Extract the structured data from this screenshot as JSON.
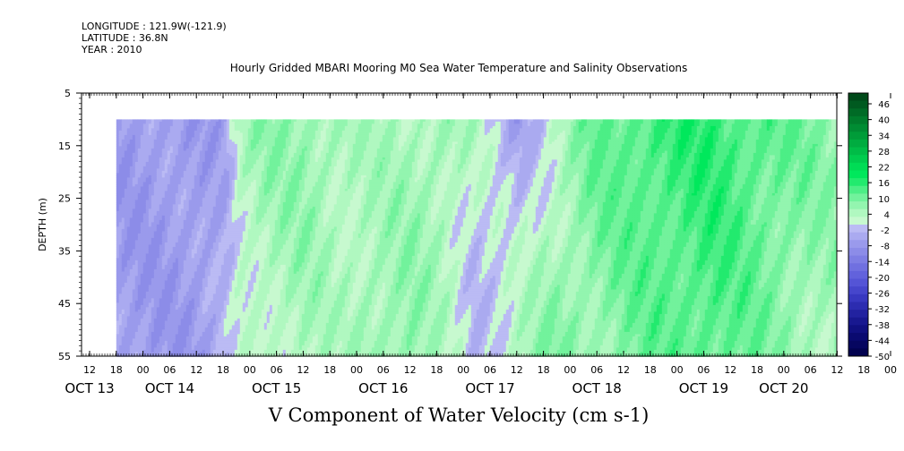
{
  "header": {
    "longitude": "LONGITUDE : 121.9W(-121.9)",
    "latitude": "LATITUDE : 36.8N",
    "year": "YEAR : 2010"
  },
  "plot_title": "Hourly Gridded MBARI Mooring M0 Sea Water Temperature and Salinity Observations",
  "main_title": "V Component of Water Velocity (cm s-1)",
  "chart_data": {
    "type": "heatmap",
    "title": "Hourly Gridded MBARI Mooring M0 Sea Water Temperature and Salinity Observations",
    "quantity": "V Component of Water Velocity (cm s-1)",
    "ylabel": "DEPTH (m)",
    "y_ticks": [
      5,
      15,
      25,
      35,
      45,
      55
    ],
    "ylim": [
      5,
      55
    ],
    "y_inverted": true,
    "x_hour_ticks": [
      "12",
      "18",
      "00",
      "06",
      "12",
      "18",
      "00",
      "06",
      "12",
      "18",
      "00",
      "06",
      "12",
      "18",
      "00",
      "06",
      "12",
      "18",
      "00",
      "06",
      "12",
      "18",
      "00",
      "06",
      "12",
      "18",
      "00",
      "06",
      "12",
      "18",
      "00",
      "06"
    ],
    "x_day_labels": [
      "OCT 13",
      "OCT 14",
      "OCT 15",
      "OCT 16",
      "OCT 17",
      "OCT 18",
      "OCT 19",
      "OCT 20"
    ],
    "x_day_label_hour_index": [
      0,
      3,
      7,
      11,
      15,
      19,
      23,
      26
    ],
    "data_depth_range": [
      10,
      55
    ],
    "data_start_hour_index": 1,
    "data_end_hour_index": 31.6,
    "colorbar": {
      "tick_labels": [
        "46",
        "40",
        "34",
        "28",
        "22",
        "16",
        "10",
        "4",
        "-2",
        "-8",
        "-14",
        "-20",
        "-26",
        "-32",
        "-38",
        "-44",
        "-50"
      ],
      "levels": [
        52,
        49,
        46,
        43,
        40,
        37,
        34,
        31,
        28,
        25,
        22,
        19,
        16,
        13,
        10,
        7,
        4,
        1,
        -2,
        -5,
        -8,
        -11,
        -14,
        -17,
        -20,
        -23,
        -26,
        -29,
        -32,
        -35,
        -38,
        -41,
        -44,
        -47,
        -50
      ],
      "colors": [
        "#004a1a",
        "#005a20",
        "#006b26",
        "#007c2c",
        "#008c33",
        "#009c39",
        "#00ac40",
        "#00bc47",
        "#00cc4e",
        "#00dc55",
        "#00e85c",
        "#22ea6e",
        "#4cee86",
        "#72f29c",
        "#93f5af",
        "#b0f8c0",
        "#c7f9cf",
        "#bbbbf4",
        "#aaaaf0",
        "#9a9aec",
        "#8c8ce8",
        "#7e7ee4",
        "#7070e0",
        "#6262dc",
        "#5454d6",
        "#4646cc",
        "#3838c0",
        "#2c2cb0",
        "#2222a0",
        "#181890",
        "#101080",
        "#0a0a70",
        "#060660",
        "#020250"
      ]
    },
    "column_profiles": [
      {
        "t": 1.0,
        "surface": -6,
        "bottom": -6
      },
      {
        "t": 1.25,
        "surface": -4,
        "bottom": -3
      },
      {
        "t": 1.4,
        "surface": 6,
        "bottom": 2
      },
      {
        "t": 1.6,
        "surface": 8,
        "bottom": 4
      },
      {
        "t": 2.0,
        "surface": 9,
        "bottom": 6
      },
      {
        "t": 2.3,
        "surface": 7,
        "bottom": 4
      },
      {
        "t": 2.6,
        "surface": 5,
        "bottom": 8
      },
      {
        "t": 3.0,
        "surface": 6,
        "bottom": 9
      },
      {
        "t": 3.3,
        "surface": 8,
        "bottom": 4
      },
      {
        "t": 3.6,
        "surface": 4,
        "bottom": -2
      },
      {
        "t": 4.0,
        "surface": -5,
        "bottom": 6
      },
      {
        "t": 4.3,
        "surface": 2,
        "bottom": 10
      },
      {
        "t": 4.7,
        "surface": 12,
        "bottom": 8
      },
      {
        "t": 5.3,
        "surface": 16,
        "bottom": 12
      },
      {
        "t": 5.8,
        "surface": 17,
        "bottom": 14
      },
      {
        "t": 6.3,
        "surface": 14,
        "bottom": 10
      },
      {
        "t": 6.8,
        "surface": 10,
        "bottom": 6
      },
      {
        "t": 7.5,
        "surface": 8,
        "bottom": 4
      },
      {
        "t": 8.0,
        "surface": 6,
        "bottom": -4
      },
      {
        "t": 8.4,
        "surface": 5,
        "bottom": -2
      },
      {
        "t": 8.8,
        "surface": 6,
        "bottom": 2
      },
      {
        "t": 9.1,
        "surface": 8,
        "bottom": -3
      },
      {
        "t": 9.5,
        "surface": 10,
        "bottom": 0
      },
      {
        "t": 10.0,
        "surface": 14,
        "bottom": 16
      },
      {
        "t": 10.5,
        "surface": 16,
        "bottom": 14
      },
      {
        "t": 11.2,
        "surface": 16,
        "bottom": 10
      },
      {
        "t": 11.8,
        "surface": 14,
        "bottom": 6
      },
      {
        "t": 12.3,
        "surface": 12,
        "bottom": 8
      },
      {
        "t": 13.0,
        "surface": 16,
        "bottom": 10
      },
      {
        "t": 13.6,
        "surface": 14,
        "bottom": 12
      },
      {
        "t": 14.2,
        "surface": 10,
        "bottom": 8
      },
      {
        "t": 14.8,
        "surface": 12,
        "bottom": 14
      },
      {
        "t": 15.2,
        "surface": 14,
        "bottom": 16
      },
      {
        "t": 15.6,
        "surface": 16,
        "bottom": 8
      },
      {
        "t": 16.0,
        "surface": 15,
        "bottom": 4
      },
      {
        "t": 16.4,
        "surface": 10,
        "bottom": -4
      },
      {
        "t": 16.7,
        "surface": 6,
        "bottom": -2
      },
      {
        "t": 17.0,
        "surface": 12,
        "bottom": 2
      },
      {
        "t": 17.6,
        "surface": 14,
        "bottom": 4
      },
      {
        "t": 18.2,
        "surface": 10,
        "bottom": 6
      },
      {
        "t": 18.8,
        "surface": 8,
        "bottom": -4
      },
      {
        "t": 19.4,
        "surface": 12,
        "bottom": 4
      },
      {
        "t": 20.0,
        "surface": 14,
        "bottom": 6
      },
      {
        "t": 20.5,
        "surface": 6,
        "bottom": 4
      },
      {
        "t": 21.0,
        "surface": 4,
        "bottom": -2
      },
      {
        "t": 21.3,
        "surface": 8,
        "bottom": -4
      },
      {
        "t": 21.7,
        "surface": 6,
        "bottom": 2
      },
      {
        "t": 22.1,
        "surface": -6,
        "bottom": -4
      },
      {
        "t": 22.6,
        "surface": -4,
        "bottom": 0
      },
      {
        "t": 23.0,
        "surface": 2,
        "bottom": 2
      },
      {
        "t": 23.5,
        "surface": 6,
        "bottom": -2
      },
      {
        "t": 24.0,
        "surface": 4,
        "bottom": -4
      },
      {
        "t": 24.4,
        "surface": 8,
        "bottom": 2
      },
      {
        "t": 25.0,
        "surface": 6,
        "bottom": -3
      },
      {
        "t": 25.6,
        "surface": 4,
        "bottom": -4
      },
      {
        "t": 26.0,
        "surface": 2,
        "bottom": -6
      },
      {
        "t": 26.6,
        "surface": 4,
        "bottom": -4
      },
      {
        "t": 27.0,
        "surface": 6,
        "bottom": 2
      },
      {
        "t": 27.4,
        "surface": 8,
        "bottom": 4
      }
    ]
  }
}
